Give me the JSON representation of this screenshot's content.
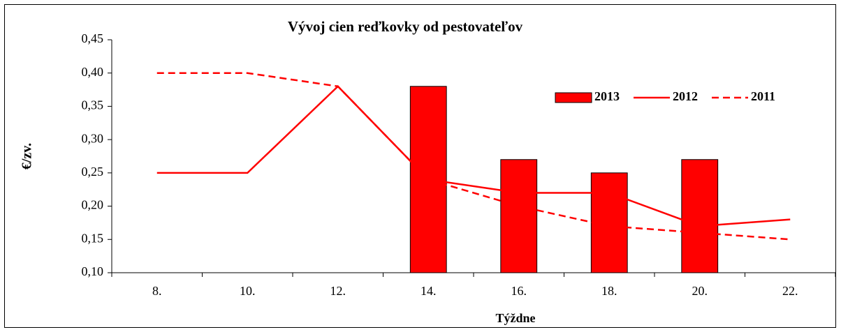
{
  "chart_data": {
    "type": "combo",
    "title": "Vývoj cien reďkovky od pestovateľov",
    "x_label": "Týždne",
    "y_label": "€/zv.",
    "categories": [
      "8.",
      "10.",
      "12.",
      "14.",
      "16.",
      "18.",
      "20.",
      "22."
    ],
    "series": [
      {
        "name": "2013",
        "type": "bar",
        "color": "#ff0000",
        "values": [
          null,
          null,
          null,
          0.38,
          0.27,
          0.25,
          0.27,
          null
        ]
      },
      {
        "name": "2012",
        "type": "line",
        "dashed": false,
        "color": "#ff0000",
        "values": [
          0.25,
          0.25,
          0.38,
          0.24,
          0.22,
          0.22,
          0.17,
          0.18
        ]
      },
      {
        "name": "2011",
        "type": "line",
        "dashed": true,
        "color": "#ff0000",
        "values": [
          0.4,
          0.4,
          0.38,
          0.24,
          0.2,
          0.17,
          0.16,
          0.15
        ]
      }
    ],
    "ylim": [
      0.1,
      0.45
    ],
    "yticks": [
      {
        "value": 0.1,
        "label": "0,10"
      },
      {
        "value": 0.15,
        "label": "0,15"
      },
      {
        "value": 0.2,
        "label": "0,20"
      },
      {
        "value": 0.25,
        "label": "0,25"
      },
      {
        "value": 0.3,
        "label": "0,30"
      },
      {
        "value": 0.35,
        "label": "0,35"
      },
      {
        "value": 0.4,
        "label": "0,40"
      },
      {
        "value": 0.45,
        "label": "0,45"
      }
    ],
    "grid": false,
    "legend": "top-right"
  }
}
